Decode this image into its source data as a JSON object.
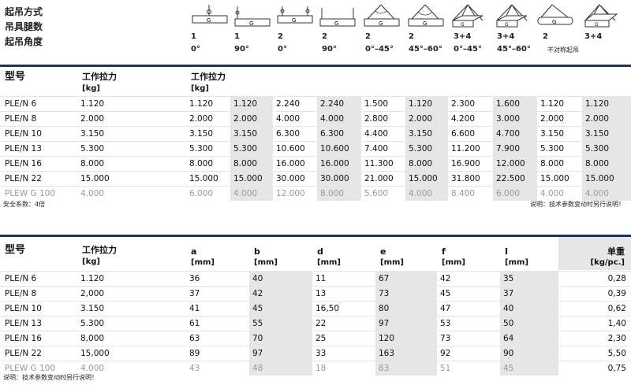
{
  "top": {
    "row_labels": [
      "起吊方式",
      "吊具腿数",
      "起吊角度"
    ],
    "methods": [
      {
        "icon": "single-leg-vertical-lift-icon",
        "legs": "1",
        "angle": "0°"
      },
      {
        "icon": "single-leg-choke-lift-icon",
        "legs": "1",
        "angle": "90°"
      },
      {
        "icon": "two-leg-vertical-lift-icon",
        "legs": "2",
        "angle": "0°"
      },
      {
        "icon": "two-leg-choke-lift-icon",
        "legs": "2",
        "angle": "90°"
      },
      {
        "icon": "two-leg-angled-lift-0-45-icon",
        "legs": "2",
        "angle": "0°–45°"
      },
      {
        "icon": "two-leg-angled-lift-45-60-icon",
        "legs": "2",
        "angle": "45°–60°"
      },
      {
        "icon": "four-leg-lift-0-45-icon",
        "legs": "3+4",
        "angle": "0°–45°"
      },
      {
        "icon": "four-leg-lift-45-60-icon",
        "legs": "3+4",
        "angle": "45°–60°"
      },
      {
        "icon": "asymmetric-two-leg-lift-icon",
        "legs": "2",
        "angle": "不对称起吊"
      },
      {
        "icon": "asymmetric-four-leg-lift-icon",
        "legs": "3+4",
        "angle": ""
      }
    ]
  },
  "table1": {
    "h_model": "型号",
    "h_wll": "工作拉力",
    "h_unit": "[kg]",
    "h_wll2": "工作拉力",
    "rows": [
      {
        "model": "PLE/N 6",
        "wll": "1.120",
        "vals": [
          "1.120",
          "1.120",
          "2.240",
          "2.240",
          "1.500",
          "1.120",
          "2.300",
          "1.600",
          "1.120",
          "1.120"
        ]
      },
      {
        "model": "PLE/N 8",
        "wll": "2.000",
        "vals": [
          "2.000",
          "2.000",
          "4.000",
          "4.000",
          "2.800",
          "2.000",
          "4.200",
          "3.000",
          "2.000",
          "2.000"
        ]
      },
      {
        "model": "PLE/N 10",
        "wll": "3.150",
        "vals": [
          "3.150",
          "3.150",
          "6.300",
          "6.300",
          "4.400",
          "3.150",
          "6.600",
          "4.700",
          "3.150",
          "3.150"
        ]
      },
      {
        "model": "PLE/N 13",
        "wll": "5.300",
        "vals": [
          "5.300",
          "5.300",
          "10.600",
          "10.600",
          "7.400",
          "5.300",
          "11.200",
          "7.900",
          "5.300",
          "5.300"
        ]
      },
      {
        "model": "PLE/N 16",
        "wll": "8.000",
        "vals": [
          "8.000",
          "8.000",
          "16.000",
          "16.000",
          "11.300",
          "8.000",
          "16.900",
          "12.000",
          "8.000",
          "8.000"
        ]
      },
      {
        "model": "PLE/N 22",
        "wll": "15.000",
        "vals": [
          "15.000",
          "15.000",
          "30.000",
          "30.000",
          "21.000",
          "15.000",
          "31.800",
          "22.500",
          "15.000",
          "15.000"
        ]
      },
      {
        "model": "PLEW G 100",
        "wll": "4.000",
        "vals": [
          "6.000",
          "4.000",
          "12.000",
          "8.000",
          "5.600",
          "4.000",
          "8.400",
          "6.000",
          "4.000",
          "4.000"
        ]
      }
    ],
    "note_left": "安全系数：4倍",
    "note_right": "说明：技术参数变动时另行说明！"
  },
  "table2": {
    "headers": [
      {
        "name": "型号",
        "unit": ""
      },
      {
        "name": "工作拉力",
        "unit": "[kg]"
      },
      {
        "name": "a",
        "unit": "[mm]"
      },
      {
        "name": "b",
        "unit": "[mm]"
      },
      {
        "name": "d",
        "unit": "[mm]"
      },
      {
        "name": "e",
        "unit": "[mm]"
      },
      {
        "name": "f",
        "unit": "[mm]"
      },
      {
        "name": "I",
        "unit": "[mm]"
      },
      {
        "name": "单重",
        "unit": "[kg/pc.]"
      }
    ],
    "rows": [
      {
        "model": "PLE/N 6",
        "wll": "1.120",
        "a": "36",
        "b": "40",
        "d": "11",
        "e": "67",
        "f": "42",
        "l": "35",
        "w": "0,28"
      },
      {
        "model": "PLE/N 8",
        "wll": "2,000",
        "a": "37",
        "b": "42",
        "d": "13",
        "e": "73",
        "f": "45",
        "l": "37",
        "w": "0,39"
      },
      {
        "model": "PLE/N 10",
        "wll": "3.150",
        "a": "41",
        "b": "45",
        "d": "16,50",
        "e": "80",
        "f": "47",
        "l": "40",
        "w": "0,62"
      },
      {
        "model": "PLE/N 13",
        "wll": "5.300",
        "a": "61",
        "b": "55",
        "d": "22",
        "e": "97",
        "f": "53",
        "l": "50",
        "w": "1,40"
      },
      {
        "model": "PLE/N 16",
        "wll": "8,000",
        "a": "63",
        "b": "70",
        "d": "25",
        "e": "120",
        "f": "73",
        "l": "64",
        "w": "2,30"
      },
      {
        "model": "PLE/N 22",
        "wll": "15,000",
        "a": "89",
        "b": "97",
        "d": "33",
        "e": "163",
        "f": "92",
        "l": "90",
        "w": "5,50"
      },
      {
        "model": "PLEW G 100",
        "wll": "4.000",
        "a": "43",
        "b": "48",
        "d": "18",
        "e": "83",
        "f": "51",
        "l": "45",
        "w": "0,75"
      }
    ],
    "note": "说明：技术参数变动时另行说明！"
  }
}
